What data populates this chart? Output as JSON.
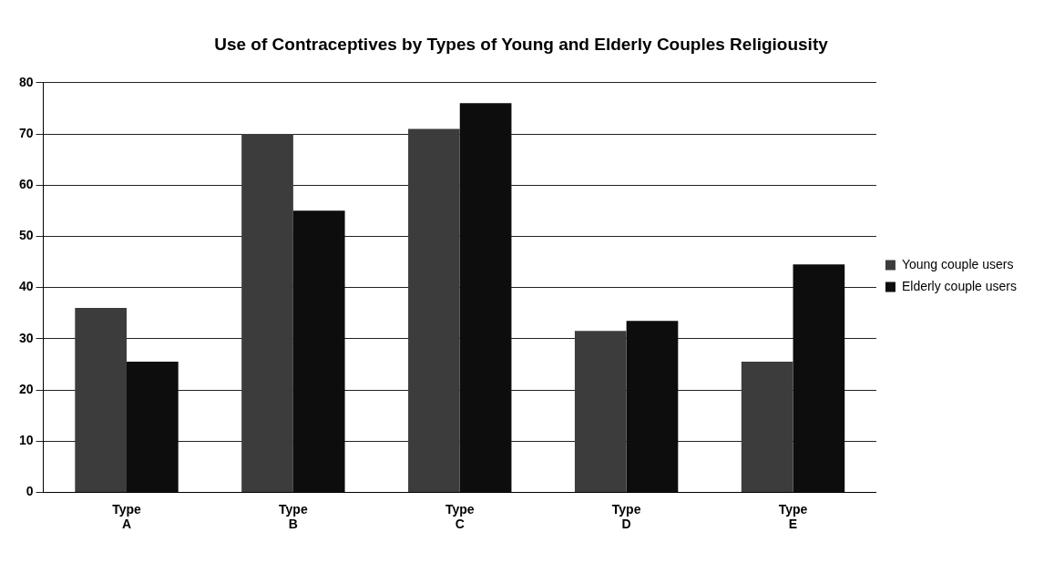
{
  "chart_data": {
    "type": "bar",
    "title": "Use of Contraceptives by Types of Young and Elderly Couples Religiousity",
    "categories": [
      "Type A",
      "Type B",
      "Type C",
      "Type D",
      "Type E"
    ],
    "series": [
      {
        "name": "Young couple users",
        "color": "#3c3c3c",
        "values": [
          36,
          70,
          71,
          31.5,
          25.5
        ]
      },
      {
        "name": "Elderly couple users",
        "color": "#0d0d0d",
        "values": [
          25.5,
          55,
          76,
          33.5,
          44.5
        ]
      }
    ],
    "ylim": [
      0,
      80
    ],
    "yticks": [
      0,
      10,
      20,
      30,
      40,
      50,
      60,
      70,
      80
    ],
    "grid": "y",
    "legend": "right"
  }
}
